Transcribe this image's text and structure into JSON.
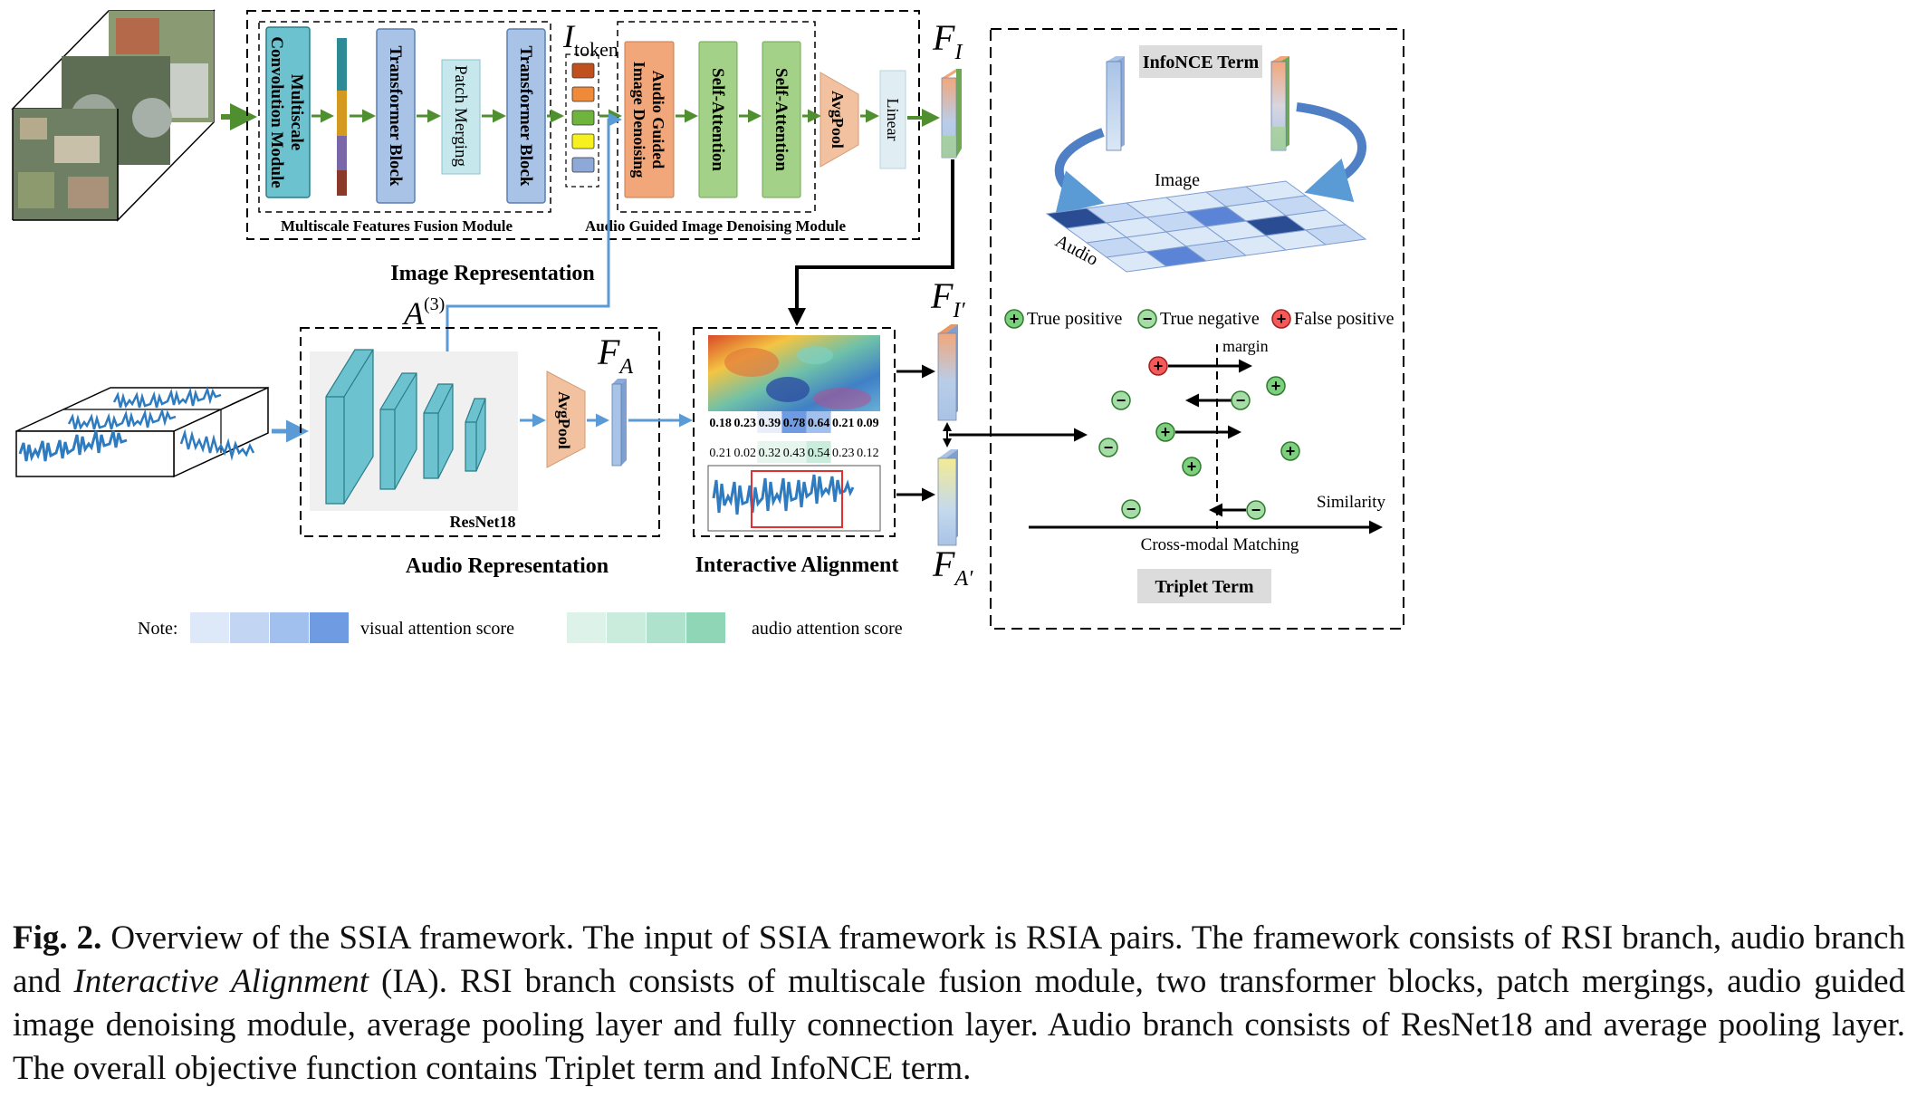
{
  "image_branch": {
    "mffm_block1": "Multiscale Convolution Module",
    "mffm_block2": "Transformer Block",
    "mffm_block3": "Patch Merging",
    "mffm_block4": "Transformer Block",
    "mffm_label": "Multiscale Features Fusion Module",
    "itoken_main": "I",
    "itoken_sub": "token",
    "agidm_block1": "Audio Guided Image Denoising",
    "agidm_block2": "Self-Attention",
    "agidm_block3": "Self-Attention",
    "agidm_avgpool": "AvgPool",
    "agidm_linear": "Linear",
    "agidm_label": "Audio Guided Image Denoising Module",
    "fi_main": "F",
    "fi_sub": "I",
    "title": "Image Representation"
  },
  "audio_branch": {
    "a3_main": "A",
    "a3_sup": "(3)",
    "resnet_label": "ResNet18",
    "avgpool": "AvgPool",
    "fa_main": "F",
    "fa_sub": "A",
    "title": "Audio Representation"
  },
  "alignment": {
    "visual_scores": [
      "0.18",
      "0.23",
      "0.39",
      "0.78",
      "0.64",
      "0.21",
      "0.09"
    ],
    "audio_scores": [
      "0.21",
      "0.02",
      "0.32",
      "0.43",
      "0.54",
      "0.23",
      "0.12"
    ],
    "title": "Interactive Alignment",
    "fi_prime_main": "F",
    "fi_prime_sub": "I′",
    "fa_prime_main": "F",
    "fa_prime_sub": "A′"
  },
  "loss": {
    "infonce_label": "InfoNCE Term",
    "matrix_image_label": "Image",
    "matrix_audio_label": "Audio",
    "legend_true_positive": "True positive",
    "legend_true_negative": "True negative",
    "legend_false_positive": "False positive",
    "margin_label": "margin",
    "similarity_label": "Similarity",
    "matching_label": "Cross-modal Matching",
    "triplet_label": "Triplet Term"
  },
  "note": {
    "label": "Note:",
    "visual_label": "visual attention score",
    "audio_label": "audio attention score",
    "visual_colors": [
      "#dde8f8",
      "#c2d6f4",
      "#a2c0ee",
      "#6e9be2"
    ],
    "audio_colors": [
      "#ddf3ea",
      "#c9ecdd",
      "#aee2cc",
      "#8fd6b6"
    ]
  },
  "caption": {
    "fig_label": "Fig. 2.",
    "text_1": " Overview of the SSIA framework. The input of SSIA framework is RSIA pairs. The framework consists of RSI branch, audio branch and ",
    "text_italic": "Interactive Alignment",
    "text_2": " (IA). RSI branch consists of multiscale fusion module, two transformer blocks, patch mergings, audio guided image denoising module, average pooling layer and fully connection layer. Audio branch consists of ResNet18 and average pooling layer. The overall objective function contains Triplet term and InfoNCE term."
  },
  "colors": {
    "teal_block": "#6cc3cf",
    "blue_block": "#a9c3e6",
    "light_teal": "#c6e7ec",
    "orange_block": "#f2a77b",
    "green_block": "#a2d187",
    "green_arrow": "#4f8f30",
    "blue_arrow": "#5b9bd5"
  }
}
